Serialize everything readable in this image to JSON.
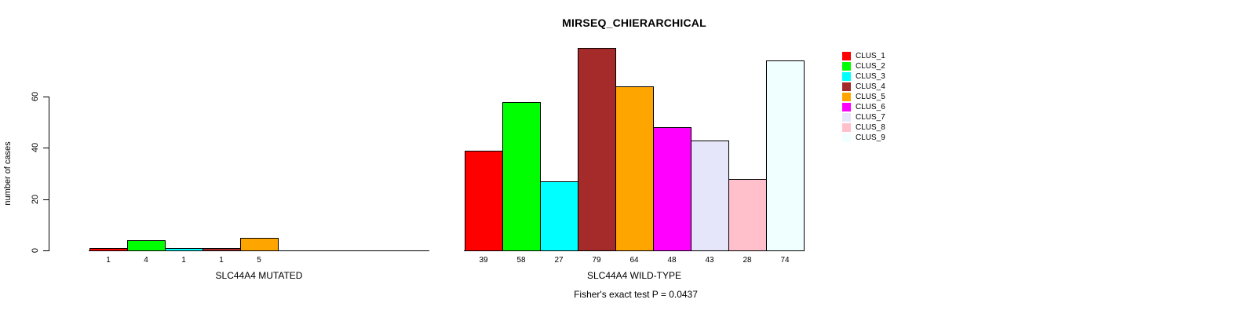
{
  "chart_data": {
    "type": "bar",
    "title": "MIRSEQ_CHIERARCHICAL",
    "ylabel": "number of cases",
    "ylim": [
      0,
      79
    ],
    "yticks": [
      0,
      20,
      40,
      60
    ],
    "grid": false,
    "legend_position": "top-right",
    "categories": [
      "CLUS_1",
      "CLUS_2",
      "CLUS_3",
      "CLUS_4",
      "CLUS_5",
      "CLUS_6",
      "CLUS_7",
      "CLUS_8",
      "CLUS_9"
    ],
    "colors": [
      "#ff0000",
      "#00ff00",
      "#00ffff",
      "#a52a2a",
      "#ffa500",
      "#ff00ff",
      "#e6e6fa",
      "#ffc0cb",
      "#f0ffff"
    ],
    "groups": [
      {
        "label": "SLC44A4 MUTATED",
        "values": [
          1,
          4,
          1,
          1,
          5,
          0,
          0,
          0,
          0
        ],
        "bar_labels": [
          "1",
          "4",
          "1",
          "1",
          "5",
          "",
          "",
          "",
          ""
        ]
      },
      {
        "label": "SLC44A4 WILD-TYPE",
        "values": [
          39,
          58,
          27,
          79,
          64,
          48,
          43,
          28,
          74
        ],
        "bar_labels": [
          "39",
          "58",
          "27",
          "79",
          "64",
          "48",
          "43",
          "28",
          "74"
        ]
      }
    ],
    "annotation": "Fisher's exact test P = 0.0437"
  }
}
